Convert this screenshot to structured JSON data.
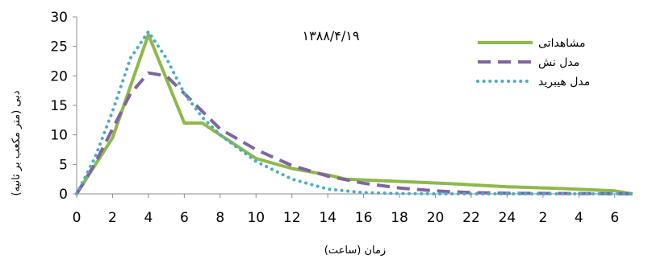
{
  "chart_data": {
    "type": "line",
    "title": "",
    "annotation": "۱۳۸۸/۴/۱۹",
    "xlabel": "زمان (ساعت)",
    "ylabel": "دبی (متر مکعب بر ثانیه)",
    "ylim": [
      0,
      30
    ],
    "yticks": [
      "0",
      "5",
      "10",
      "15",
      "20",
      "25",
      "30"
    ],
    "xticks": [
      "0",
      "2",
      "4",
      "6",
      "8",
      "10",
      "12",
      "14",
      "16",
      "18",
      "20",
      "22",
      "24",
      "2",
      "4",
      "6"
    ],
    "grid": false,
    "legend_position": "top-right",
    "series": [
      {
        "name": "مشاهداتی",
        "color": "#8db94a",
        "style": "solid",
        "points": [
          [
            0,
            0
          ],
          [
            2,
            9.5
          ],
          [
            4,
            27
          ],
          [
            6,
            12
          ],
          [
            7,
            12
          ],
          [
            8,
            10
          ],
          [
            10,
            6
          ],
          [
            12,
            4.3
          ],
          [
            14,
            3.2
          ],
          [
            15,
            2.5
          ],
          [
            18,
            2.1
          ],
          [
            21,
            1.7
          ],
          [
            24,
            1.2
          ],
          [
            27,
            0.9
          ],
          [
            30,
            0.5
          ],
          [
            31,
            0
          ]
        ]
      },
      {
        "name": "مدل نش",
        "color": "#8064a2",
        "style": "dashed",
        "points": [
          [
            0,
            0
          ],
          [
            1,
            5
          ],
          [
            2,
            11
          ],
          [
            3,
            17
          ],
          [
            4,
            20.5
          ],
          [
            5,
            20
          ],
          [
            6,
            17
          ],
          [
            7,
            14
          ],
          [
            8,
            11
          ],
          [
            10,
            7.5
          ],
          [
            12,
            4.8
          ],
          [
            14,
            3
          ],
          [
            16,
            1.8
          ],
          [
            18,
            1
          ],
          [
            20,
            0.5
          ],
          [
            22,
            0.2
          ],
          [
            24,
            0.1
          ],
          [
            28,
            0.05
          ],
          [
            31,
            0
          ]
        ]
      },
      {
        "name": "مدل هیبرید",
        "color": "#4bacc6",
        "style": "dotted",
        "points": [
          [
            0,
            0
          ],
          [
            1,
            6
          ],
          [
            2,
            14
          ],
          [
            3,
            23
          ],
          [
            4,
            27.5
          ],
          [
            5,
            23
          ],
          [
            6,
            17
          ],
          [
            7,
            13
          ],
          [
            8,
            10
          ],
          [
            10,
            5.5
          ],
          [
            12,
            2.5
          ],
          [
            14,
            0.8
          ],
          [
            16,
            0.2
          ],
          [
            18,
            0.05
          ],
          [
            20,
            0
          ],
          [
            31,
            0
          ]
        ]
      }
    ]
  }
}
